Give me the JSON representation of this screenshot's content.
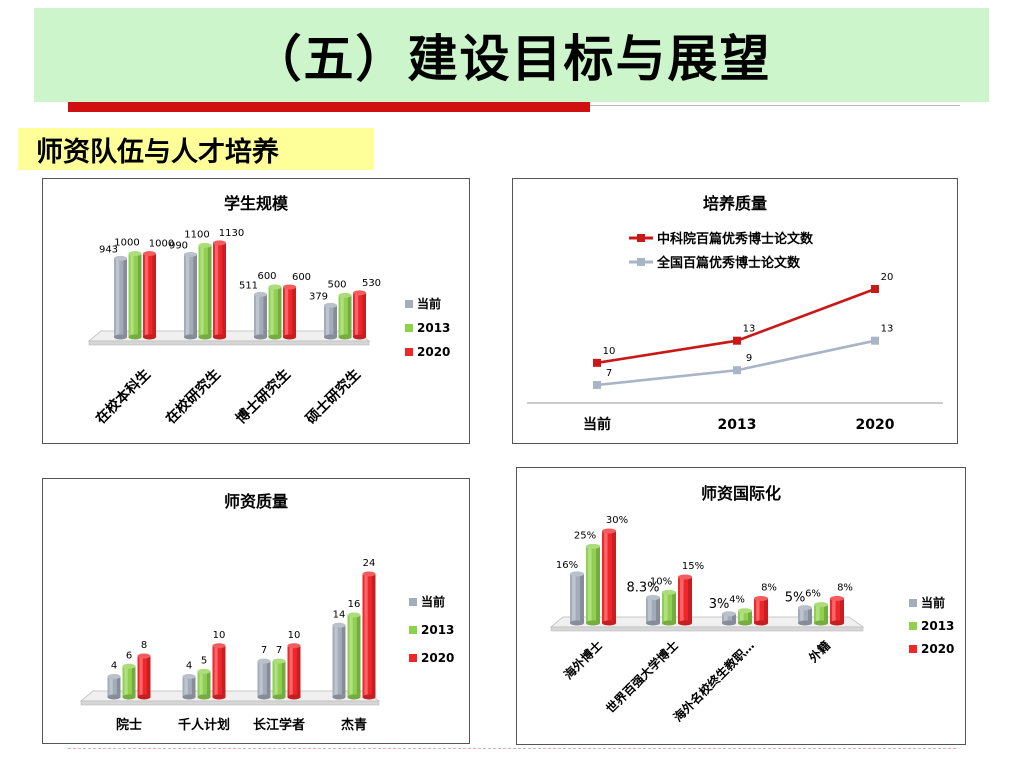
{
  "page": {
    "title": "（五）建设目标与展望",
    "section": "师资队伍与人才培养"
  },
  "colors": {
    "title_band": "#ccf5cc",
    "section_band": "#ffff99",
    "accent_red": "#d01010",
    "series": [
      "#a3acb9",
      "#8fd14f",
      "#f0262a"
    ],
    "line_red": "#c81818",
    "line_gray": "#a9b4c7"
  },
  "chart_data": [
    {
      "id": "student",
      "type": "bar",
      "title": "学生规模",
      "categories": [
        "在校本科生",
        "在校研究生",
        "博士研究生",
        "硕士研究生"
      ],
      "series": [
        {
          "name": "当前",
          "values": [
            943,
            990,
            511,
            379
          ]
        },
        {
          "name": "2013",
          "values": [
            1000,
            1100,
            600,
            500
          ]
        },
        {
          "name": "2020",
          "values": [
            1000,
            1130,
            600,
            530
          ]
        }
      ],
      "labels": [
        [
          "943",
          "990",
          "511",
          "379"
        ],
        [
          "1000",
          "1100",
          "600",
          "500"
        ],
        [
          "1000",
          "1130",
          "600",
          "530"
        ]
      ],
      "legend": "right"
    },
    {
      "id": "training",
      "type": "line",
      "title": "培养质量",
      "categories": [
        "当前",
        "2013",
        "2020"
      ],
      "series": [
        {
          "name": "中科院百篇优秀博士论文数",
          "values": [
            10,
            13,
            20
          ]
        },
        {
          "name": "全国百篇优秀博士论文数",
          "values": [
            7,
            9,
            13
          ]
        }
      ],
      "legend": "top"
    },
    {
      "id": "faculty",
      "type": "bar",
      "title": "师资质量",
      "categories": [
        "院士",
        "千人计划",
        "长江学者",
        "杰青"
      ],
      "series": [
        {
          "name": "当前",
          "values": [
            4,
            4,
            7,
            14
          ]
        },
        {
          "name": "2013",
          "values": [
            6,
            5,
            7,
            16
          ]
        },
        {
          "name": "2020",
          "values": [
            8,
            10,
            10,
            24
          ]
        }
      ],
      "labels": [
        [
          "4",
          "4",
          "7",
          "14"
        ],
        [
          "6",
          "5",
          "7",
          "16"
        ],
        [
          "8",
          "10",
          "10",
          "24"
        ]
      ],
      "legend": "right"
    },
    {
      "id": "intl",
      "type": "bar",
      "title": "师资国际化",
      "categories": [
        "海外博士",
        "世界百强大学博士",
        "海外名校终生教职…",
        "外籍"
      ],
      "series": [
        {
          "name": "当前",
          "values": [
            16,
            8.3,
            3,
            5
          ]
        },
        {
          "name": "2013",
          "values": [
            25,
            10,
            4,
            6
          ]
        },
        {
          "name": "2020",
          "values": [
            30,
            15,
            8,
            8
          ]
        }
      ],
      "labels": [
        [
          "16%",
          "8.3%",
          "3%",
          "5%"
        ],
        [
          "25%",
          "10%",
          "4%",
          "6%"
        ],
        [
          "30%",
          "15%",
          "8%",
          "8%"
        ]
      ],
      "legend": "right"
    }
  ]
}
